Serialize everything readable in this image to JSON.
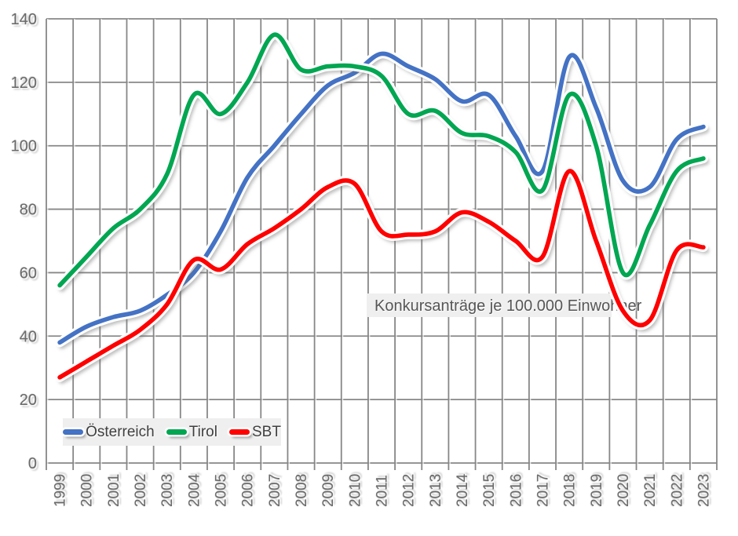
{
  "chart_data": {
    "type": "line",
    "annotation": "Konkursanträge je 100.000 Einwohner",
    "categories": [
      "1999",
      "2000",
      "2001",
      "2002",
      "2003",
      "2004",
      "2005",
      "2006",
      "2007",
      "2008",
      "2009",
      "2010",
      "2011",
      "2012",
      "2013",
      "2014",
      "2015",
      "2016",
      "2017",
      "2018",
      "2019",
      "2020",
      "2021",
      "2022",
      "2023"
    ],
    "series": [
      {
        "name": "Österreich",
        "color": "#4472C4",
        "values": [
          38,
          43,
          46,
          48,
          53,
          60,
          73,
          90,
          100,
          110,
          119,
          123,
          129,
          125,
          121,
          114,
          116,
          103,
          92,
          128,
          112,
          89,
          87,
          102,
          106
        ]
      },
      {
        "name": "Tirol",
        "color": "#00A651",
        "values": [
          56,
          65,
          74,
          80,
          91,
          116,
          110,
          120,
          135,
          124,
          125,
          125,
          122,
          110,
          111,
          104,
          103,
          98,
          86,
          116,
          100,
          60,
          75,
          92,
          96
        ]
      },
      {
        "name": "SBT",
        "color": "#FE0000",
        "values": [
          27,
          32,
          37,
          42,
          50,
          64,
          61,
          69,
          74,
          80,
          87,
          88,
          73,
          72,
          73,
          79,
          76,
          70,
          65,
          92,
          70,
          48,
          45,
          67,
          68
        ]
      }
    ],
    "ylim": [
      0,
      140
    ],
    "yticks": [
      0,
      20,
      40,
      60,
      80,
      100,
      120,
      140
    ],
    "grid": "both",
    "legend_position": "bottom-left-inside",
    "line_style": "smooth-with-white-halo-and-drop-shadow",
    "colors": {
      "gridline": "#878787",
      "tick_label": "#6a6a6a",
      "legend_background": "#efefef",
      "annotation_background": "#efefef",
      "background": "#ffffff"
    }
  }
}
